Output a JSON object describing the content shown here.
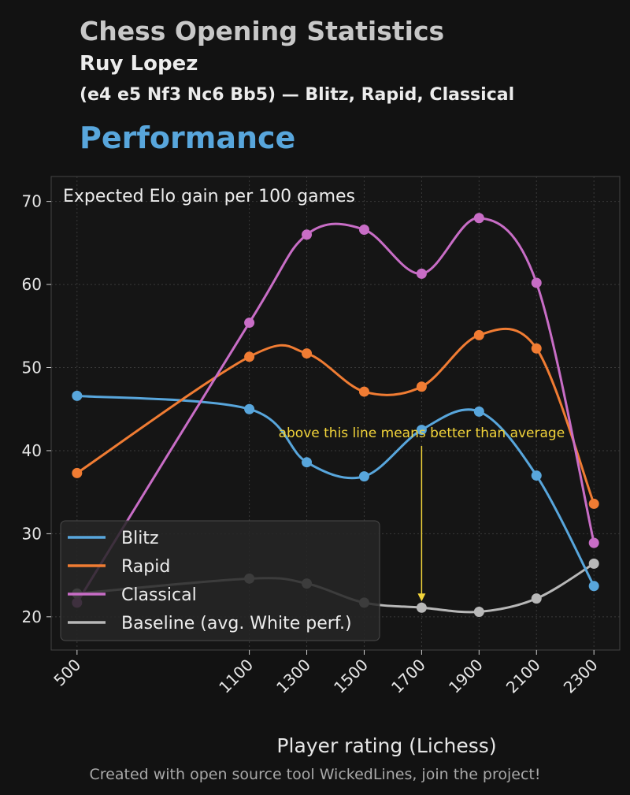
{
  "header": {
    "app_title": "Chess Opening Statistics",
    "opening_name": "Ruy Lopez",
    "opening_desc": "(e4 e5 Nf3 Nc6 Bb5) — Blitz, Rapid, Classical",
    "section_title": "Performance"
  },
  "footer": "Created with open source tool WickedLines, join the project!",
  "colors": {
    "background": "#121212",
    "plot_bg": "#151515",
    "blitz": "#58a6dc",
    "rapid": "#f07c33",
    "classical": "#c86dc6",
    "baseline": "#b8b8b8",
    "annotation": "#f2d43a"
  },
  "chart_data": {
    "type": "line",
    "title": "Performance",
    "inner_title": "Expected Elo gain per 100 games",
    "xlabel": "Player rating (Lichess)",
    "ylabel": "",
    "x": [
      500,
      1100,
      1300,
      1500,
      1700,
      1900,
      2100,
      2300
    ],
    "x_tick_labels": [
      "500",
      "1100",
      "1300",
      "1500",
      "1700",
      "1900",
      "2100",
      "2300"
    ],
    "y_ticks": [
      20,
      30,
      40,
      50,
      60,
      70
    ],
    "xlim": [
      410,
      2390
    ],
    "ylim": [
      16,
      73
    ],
    "grid": true,
    "smooth": true,
    "legend_position": "lower-left",
    "series": [
      {
        "name": "Blitz",
        "color": "#58a6dc",
        "values": [
          46.6,
          45.0,
          38.6,
          36.9,
          42.5,
          44.7,
          37.0,
          23.7
        ]
      },
      {
        "name": "Rapid",
        "color": "#f07c33",
        "values": [
          37.3,
          51.3,
          51.7,
          47.1,
          47.7,
          53.9,
          52.3,
          33.6
        ]
      },
      {
        "name": "Classical",
        "color": "#c86dc6",
        "values": [
          21.7,
          55.4,
          66.0,
          66.6,
          61.3,
          68.0,
          60.2,
          28.9
        ]
      },
      {
        "name": "Baseline (avg. White perf.)",
        "color": "#b8b8b8",
        "values": [
          22.8,
          24.6,
          24.0,
          21.7,
          21.1,
          20.6,
          22.2,
          26.4
        ]
      }
    ],
    "annotation": {
      "text": "above this line means better than average",
      "x": 1700,
      "arrow_from_y": 40.5,
      "arrow_to_y": 21.1
    }
  }
}
